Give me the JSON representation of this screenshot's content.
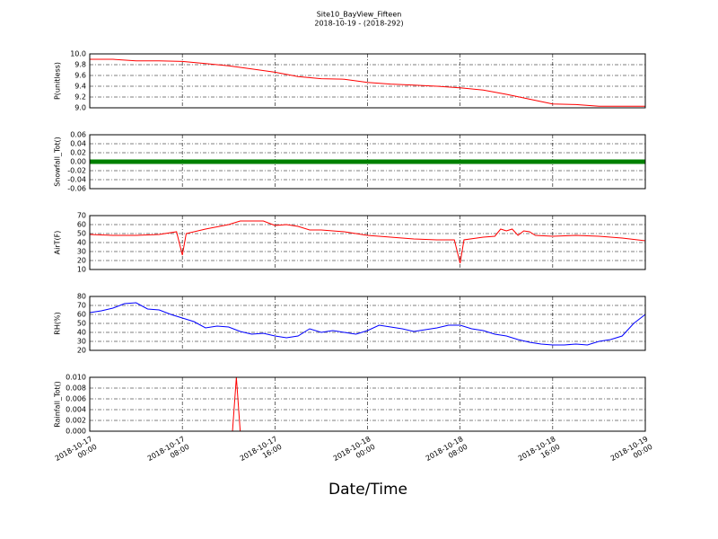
{
  "chart_data": [
    {
      "type": "line",
      "title": "Site10_BayView_Fifteen",
      "subtitle": "2018-10-19 - (2018-292)",
      "ylabel": "P(unitless)",
      "color": "#ff0000",
      "grid": true,
      "ylim": [
        9.0,
        10.0
      ],
      "yticks": [
        {
          "value": 9.0,
          "label": "9.0"
        },
        9.2,
        9.4,
        9.6,
        9.8,
        {
          "value": 10.0,
          "label": "10.0"
        }
      ],
      "x": [
        "2018-10-17 00:00",
        "2018-10-17 02:00",
        "2018-10-17 04:00",
        "2018-10-17 06:00",
        "2018-10-17 08:00",
        "2018-10-17 10:00",
        "2018-10-17 12:00",
        "2018-10-17 14:00",
        "2018-10-17 16:00",
        "2018-10-17 18:00",
        "2018-10-17 20:00",
        "2018-10-17 22:00",
        "2018-10-18 00:00",
        "2018-10-18 02:00",
        "2018-10-18 04:00",
        "2018-10-18 06:00",
        "2018-10-18 08:00",
        "2018-10-18 10:00",
        "2018-10-18 12:00",
        "2018-10-18 14:00",
        "2018-10-18 16:00",
        "2018-10-18 18:00",
        "2018-10-18 20:00",
        "2018-10-18 22:00",
        "2018-10-19 00:00"
      ],
      "values": [
        9.9,
        9.9,
        9.87,
        9.87,
        9.86,
        9.82,
        9.78,
        9.72,
        9.66,
        9.58,
        9.54,
        9.53,
        9.47,
        9.44,
        9.42,
        9.4,
        9.37,
        9.33,
        9.25,
        9.16,
        9.07,
        9.06,
        9.03,
        9.03,
        9.03
      ]
    },
    {
      "type": "line",
      "ylabel": "Snowfall_Tot()",
      "color": "#008000",
      "linewidth": 5,
      "grid": true,
      "ylim": [
        -0.06,
        0.06
      ],
      "yticks": [
        -0.06,
        -0.04,
        -0.02,
        {
          "value": 0,
          "label": "0.00"
        },
        0.02,
        0.04,
        0.06
      ],
      "x": [
        "2018-10-17 00:00",
        "2018-10-17 04:00",
        "2018-10-17 08:00",
        "2018-10-17 12:00",
        "2018-10-17 16:00",
        "2018-10-17 20:00",
        "2018-10-18 00:00",
        "2018-10-18 04:00",
        "2018-10-18 08:00",
        "2018-10-18 12:00",
        "2018-10-18 16:00",
        "2018-10-18 20:00",
        "2018-10-19 00:00"
      ],
      "values": [
        0,
        0,
        0,
        0,
        0,
        0,
        0,
        0,
        0,
        0,
        0,
        0,
        0
      ]
    },
    {
      "type": "line",
      "ylabel": "AirT(F)",
      "color": "#ff0000",
      "grid": true,
      "ylim": [
        10,
        70
      ],
      "yticks": [
        10,
        20,
        30,
        40,
        50,
        60,
        70
      ],
      "x": [
        "2018-10-17 00:00",
        "2018-10-17 02:00",
        "2018-10-17 04:00",
        "2018-10-17 06:00",
        "2018-10-17 07:30",
        "2018-10-17 08:00",
        "2018-10-17 08:20",
        "2018-10-17 10:00",
        "2018-10-17 12:00",
        "2018-10-17 13:00",
        "2018-10-17 14:00",
        "2018-10-17 15:00",
        "2018-10-17 16:00",
        "2018-10-17 17:00",
        "2018-10-17 18:00",
        "2018-10-17 19:00",
        "2018-10-17 20:00",
        "2018-10-17 22:00",
        "2018-10-18 00:00",
        "2018-10-18 02:00",
        "2018-10-18 04:00",
        "2018-10-18 06:00",
        "2018-10-18 07:30",
        "2018-10-18 08:00",
        "2018-10-18 08:20",
        "2018-10-18 10:00",
        "2018-10-18 11:00",
        "2018-10-18 11:30",
        "2018-10-18 12:00",
        "2018-10-18 12:30",
        "2018-10-18 13:00",
        "2018-10-18 13:30",
        "2018-10-18 14:00",
        "2018-10-18 14:30",
        "2018-10-18 16:00",
        "2018-10-18 18:00",
        "2018-10-18 20:00",
        "2018-10-18 22:00",
        "2018-10-19 00:00"
      ],
      "values": [
        49,
        48,
        48,
        49,
        52,
        26,
        50,
        55,
        60,
        64,
        64,
        64,
        59,
        60,
        58,
        54,
        54,
        52,
        48,
        46,
        44,
        43,
        43,
        17,
        43,
        46,
        47,
        55,
        53,
        55,
        48,
        53,
        52,
        48,
        47,
        48,
        47,
        45,
        42
      ]
    },
    {
      "type": "line",
      "ylabel": "RH(%)",
      "color": "#0000ff",
      "grid": true,
      "ylim": [
        20,
        80
      ],
      "yticks": [
        20,
        30,
        40,
        50,
        60,
        70,
        80
      ],
      "x": [
        "2018-10-17 00:00",
        "2018-10-17 01:00",
        "2018-10-17 02:00",
        "2018-10-17 03:00",
        "2018-10-17 04:00",
        "2018-10-17 05:00",
        "2018-10-17 06:00",
        "2018-10-17 07:00",
        "2018-10-17 08:00",
        "2018-10-17 09:00",
        "2018-10-17 10:00",
        "2018-10-17 11:00",
        "2018-10-17 12:00",
        "2018-10-17 13:00",
        "2018-10-17 14:00",
        "2018-10-17 15:00",
        "2018-10-17 16:00",
        "2018-10-17 17:00",
        "2018-10-17 18:00",
        "2018-10-17 19:00",
        "2018-10-17 20:00",
        "2018-10-17 21:00",
        "2018-10-17 22:00",
        "2018-10-17 23:00",
        "2018-10-18 00:00",
        "2018-10-18 01:00",
        "2018-10-18 02:00",
        "2018-10-18 03:00",
        "2018-10-18 04:00",
        "2018-10-18 05:00",
        "2018-10-18 06:00",
        "2018-10-18 07:00",
        "2018-10-18 08:00",
        "2018-10-18 09:00",
        "2018-10-18 10:00",
        "2018-10-18 11:00",
        "2018-10-18 12:00",
        "2018-10-18 13:00",
        "2018-10-18 14:00",
        "2018-10-18 15:00",
        "2018-10-18 16:00",
        "2018-10-18 17:00",
        "2018-10-18 18:00",
        "2018-10-18 19:00",
        "2018-10-18 20:00",
        "2018-10-18 21:00",
        "2018-10-18 22:00",
        "2018-10-18 23:00",
        "2018-10-19 00:00"
      ],
      "values": [
        62,
        64,
        67,
        72,
        73,
        66,
        65,
        60,
        56,
        52,
        45,
        47,
        46,
        41,
        38,
        39,
        36,
        34,
        36,
        44,
        40,
        42,
        40,
        38,
        42,
        48,
        46,
        44,
        41,
        43,
        45,
        48,
        48,
        44,
        42,
        38,
        36,
        32,
        29,
        27,
        26,
        26,
        27,
        26,
        30,
        32,
        36,
        50,
        60
      ]
    },
    {
      "type": "line",
      "ylabel": "Rainfall_Tot()",
      "xlabel": "Date/Time",
      "color": "#ff0000",
      "grid": true,
      "ylim": [
        0,
        0.01
      ],
      "yticks": [
        {
          "value": 0,
          "label": "0.000"
        },
        {
          "value": 0.002,
          "label": "0.002"
        },
        {
          "value": 0.004,
          "label": "0.004"
        },
        {
          "value": 0.006,
          "label": "0.006"
        },
        {
          "value": 0.008,
          "label": "0.008"
        },
        {
          "value": 0.01,
          "label": "0.010"
        }
      ],
      "xlim": [
        "2018-10-17 00:00",
        "2018-10-19 00:00"
      ],
      "xticks": [
        "2018-10-17 00:00",
        "2018-10-17 08:00",
        "2018-10-17 16:00",
        "2018-10-18 00:00",
        "2018-10-18 08:00",
        "2018-10-18 16:00",
        "2018-10-19 00:00"
      ],
      "x": [
        "2018-10-17 00:00",
        "2018-10-17 12:20",
        "2018-10-17 12:40",
        "2018-10-17 13:00",
        "2018-10-19 00:00"
      ],
      "values": [
        0,
        0,
        0.01,
        0,
        0
      ]
    }
  ]
}
